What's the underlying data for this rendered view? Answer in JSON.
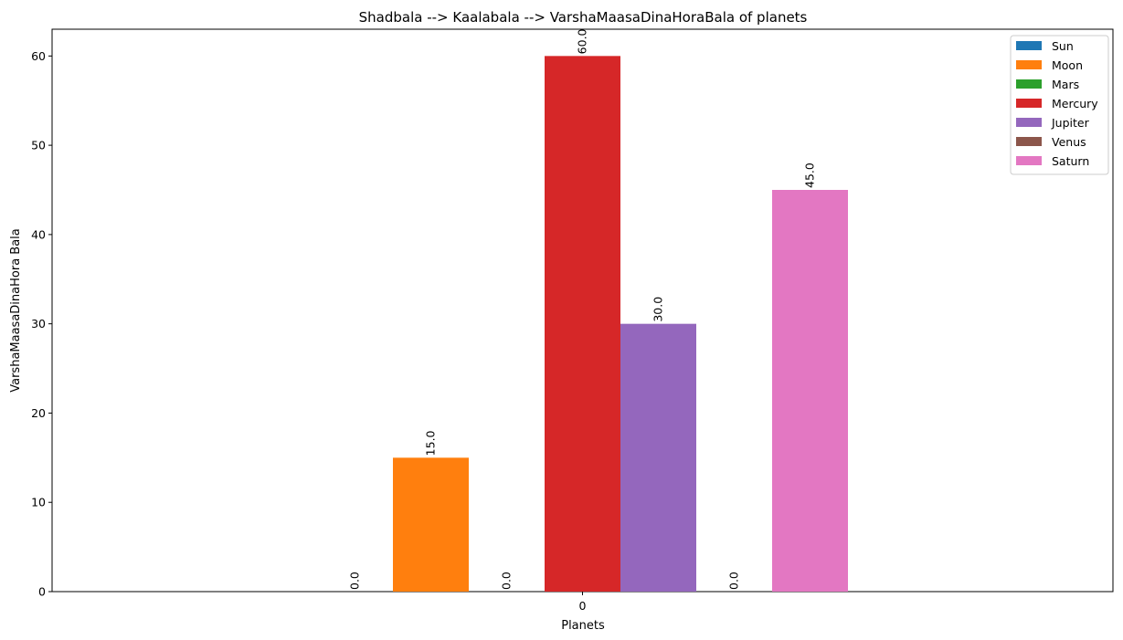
{
  "chart_data": {
    "type": "bar",
    "title": "Shadbala --> Kaalabala --> VarshaMaasaDinaHoraBala of planets",
    "xlabel": "Planets",
    "ylabel": "VarshaMaasaDinaHora Bala",
    "categories": [
      "0"
    ],
    "ylim": [
      0,
      63
    ],
    "yticks": [
      "0",
      "10",
      "20",
      "30",
      "40",
      "50",
      "60"
    ],
    "legend_position": "top-right",
    "grid": false,
    "series": [
      {
        "name": "Sun",
        "values": [
          0.0
        ],
        "color": "#1f77b4",
        "label": "0.0"
      },
      {
        "name": "Moon",
        "values": [
          15.0
        ],
        "color": "#ff7f0e",
        "label": "15.0"
      },
      {
        "name": "Mars",
        "values": [
          0.0
        ],
        "color": "#2ca02c",
        "label": "0.0"
      },
      {
        "name": "Mercury",
        "values": [
          60.0
        ],
        "color": "#d62728",
        "label": "60.0"
      },
      {
        "name": "Jupiter",
        "values": [
          30.0
        ],
        "color": "#9467bd",
        "label": "30.0"
      },
      {
        "name": "Venus",
        "values": [
          0.0
        ],
        "color": "#8c564b",
        "label": "0.0"
      },
      {
        "name": "Saturn",
        "values": [
          45.0
        ],
        "color": "#e377c2",
        "label": "45.0"
      }
    ]
  }
}
